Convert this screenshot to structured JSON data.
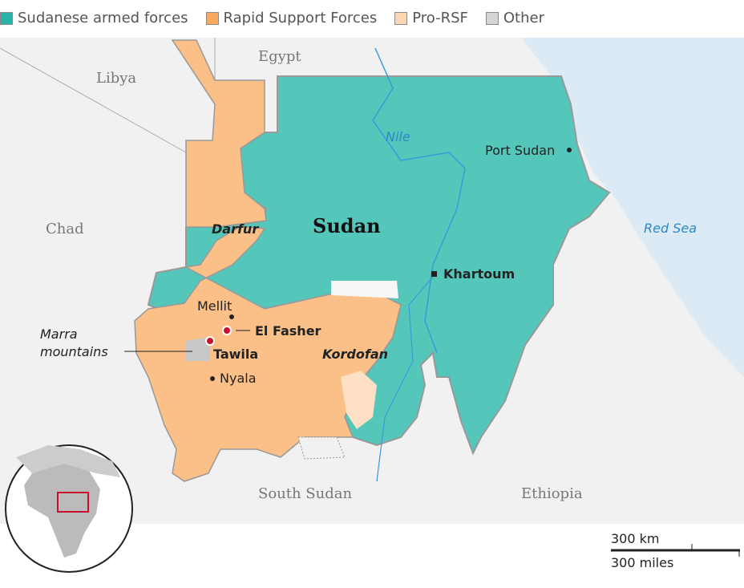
{
  "legend": [
    {
      "label": "Sudanese armed forces",
      "color": "#28b3a6"
    },
    {
      "label": "Rapid Support Forces",
      "color": "#f9a860"
    },
    {
      "label": "Pro-RSF",
      "color": "#fdd6b5"
    },
    {
      "label": "Other",
      "color": "#d5d5d5"
    }
  ],
  "colors": {
    "saf": "#55c6ba",
    "rsf": "#fbbf88",
    "pro_rsf": "#fde0c6",
    "other": "#c8c8c8",
    "land": "#f1f1f1",
    "sea": "#dceaf5",
    "marker": "#c8102e"
  },
  "countries": {
    "egypt": "Egypt",
    "libya": "Libya",
    "chad": "Chad",
    "sudan": "Sudan",
    "south_sudan": "South Sudan",
    "ethiopia": "Ethiopia"
  },
  "water": {
    "nile": "Nile",
    "red_sea": "Red Sea"
  },
  "regions": {
    "darfur": "Darfur",
    "kordofan": "Kordofan"
  },
  "cities": {
    "port_sudan": "Port Sudan",
    "khartoum": "Khartoum",
    "mellit": "Mellit",
    "el_fasher": "El Fasher",
    "tawila": "Tawila",
    "nyala": "Nyala"
  },
  "features": {
    "marra_1": "Marra",
    "marra_2": "mountains"
  },
  "scale": {
    "km": "300 km",
    "miles": "300 miles"
  }
}
